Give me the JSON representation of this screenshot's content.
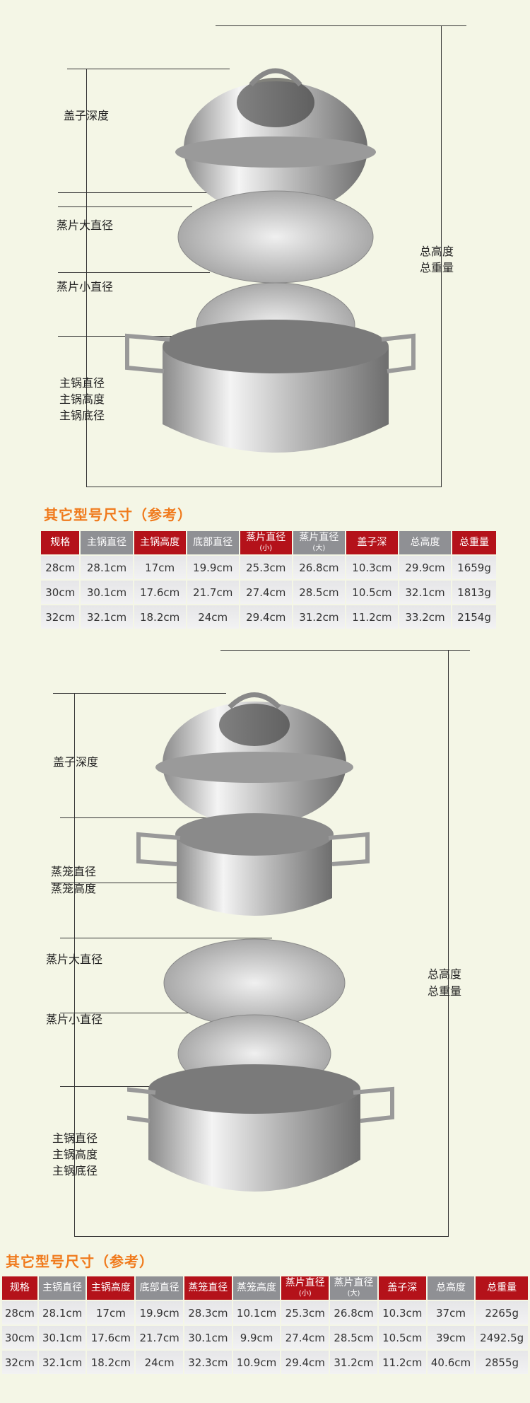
{
  "diagram1": {
    "labels": {
      "lid_depth": "盖子深度",
      "plate_large": "蒸片大直径",
      "plate_small": "蒸片小直径",
      "pot_dia": "主锅直径",
      "pot_height": "主锅高度",
      "pot_base": "主锅底径",
      "total_height": "总高度",
      "total_weight": "总重量"
    }
  },
  "table1": {
    "title": "其它型号尺寸（参考）",
    "headers": [
      {
        "t": "规格",
        "c": "r"
      },
      {
        "t": "主锅直径",
        "c": "g"
      },
      {
        "t": "主锅高度",
        "c": "r"
      },
      {
        "t": "底部直径",
        "c": "g"
      },
      {
        "t": "蒸片直径",
        "s": "(小)",
        "c": "r"
      },
      {
        "t": "蒸片直径",
        "s": "(大)",
        "c": "g"
      },
      {
        "t": "盖子深",
        "c": "r"
      },
      {
        "t": "总高度",
        "c": "g"
      },
      {
        "t": "总重量",
        "c": "r"
      }
    ],
    "rows": [
      [
        "28cm",
        "28.1cm",
        "17cm",
        "19.9cm",
        "25.3cm",
        "26.8cm",
        "10.3cm",
        "29.9cm",
        "1659g"
      ],
      [
        "30cm",
        "30.1cm",
        "17.6cm",
        "21.7cm",
        "27.4cm",
        "28.5cm",
        "10.5cm",
        "32.1cm",
        "1813g"
      ],
      [
        "32cm",
        "32.1cm",
        "18.2cm",
        "24cm",
        "29.4cm",
        "31.2cm",
        "11.2cm",
        "33.2cm",
        "2154g"
      ]
    ]
  },
  "diagram2": {
    "labels": {
      "lid_depth": "盖子深度",
      "steamer_dia": "蒸笼直径",
      "steamer_height": "蒸笼高度",
      "plate_large": "蒸片大直径",
      "plate_small": "蒸片小直径",
      "pot_dia": "主锅直径",
      "pot_height": "主锅高度",
      "pot_base": "主锅底径",
      "total_height": "总高度",
      "total_weight": "总重量"
    }
  },
  "table2": {
    "title": "其它型号尺寸（参考）",
    "headers": [
      {
        "t": "规格",
        "c": "r"
      },
      {
        "t": "主锅直径",
        "c": "g"
      },
      {
        "t": "主锅高度",
        "c": "r"
      },
      {
        "t": "底部直径",
        "c": "g"
      },
      {
        "t": "蒸笼直径",
        "c": "r"
      },
      {
        "t": "蒸笼高度",
        "c": "g"
      },
      {
        "t": "蒸片直径",
        "s": "(小)",
        "c": "r"
      },
      {
        "t": "蒸片直径",
        "s": "(大)",
        "c": "g"
      },
      {
        "t": "盖子深",
        "c": "r"
      },
      {
        "t": "总高度",
        "c": "g"
      },
      {
        "t": "总重量",
        "c": "r"
      }
    ],
    "rows": [
      [
        "28cm",
        "28.1cm",
        "17cm",
        "19.9cm",
        "28.3cm",
        "10.1cm",
        "25.3cm",
        "26.8cm",
        "10.3cm",
        "37cm",
        "2265g"
      ],
      [
        "30cm",
        "30.1cm",
        "17.6cm",
        "21.7cm",
        "30.1cm",
        "9.9cm",
        "27.4cm",
        "28.5cm",
        "10.5cm",
        "39cm",
        "2492.5g"
      ],
      [
        "32cm",
        "32.1cm",
        "18.2cm",
        "24cm",
        "32.3cm",
        "10.9cm",
        "29.4cm",
        "31.2cm",
        "11.2cm",
        "40.6cm",
        "2855g"
      ]
    ]
  }
}
